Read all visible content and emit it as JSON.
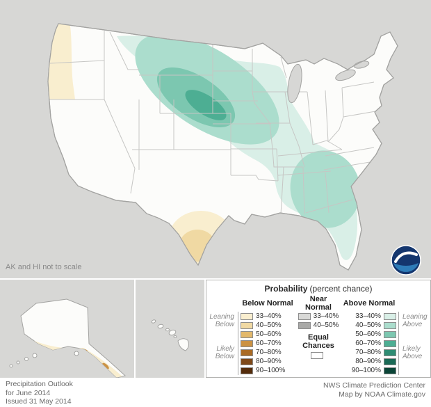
{
  "palette": {
    "page_bg": "#ffffff",
    "map_bg": "#d7d7d5",
    "land": "#fcfcfa",
    "state_line": "#c6c6c4",
    "outline": "#a3a3a1",
    "lake": "#d7d7d5",
    "logo_navy": "#14366e",
    "logo_blue": "#2e7cb8"
  },
  "map": {
    "note": "AK and HI not to scale"
  },
  "legend": {
    "title": "Probability",
    "title_suffix": "(percent chance)",
    "below": {
      "header": "Below Normal",
      "group_labels": {
        "leaning": [
          "Leaning",
          "Below"
        ],
        "likely": [
          "Likely",
          "Below"
        ]
      },
      "rows": [
        {
          "label": "33–40%",
          "color": "#f9eecf"
        },
        {
          "label": "40–50%",
          "color": "#f0d9a3"
        },
        {
          "label": "50–60%",
          "color": "#e2b86b"
        },
        {
          "label": "60–70%",
          "color": "#cb9243"
        },
        {
          "label": "70–80%",
          "color": "#aa6b25"
        },
        {
          "label": "80–90%",
          "color": "#7e4818"
        },
        {
          "label": "90–100%",
          "color": "#542c0b"
        }
      ]
    },
    "near": {
      "header": [
        "Near",
        "Normal"
      ],
      "rows": [
        {
          "label": "33–40%",
          "color": "#d9d9d7"
        },
        {
          "label": "40–50%",
          "color": "#a9a9a7"
        }
      ],
      "equal": [
        "Equal",
        "Chances"
      ],
      "equal_color": "#ffffff"
    },
    "above": {
      "header": "Above Normal",
      "group_labels": {
        "leaning": [
          "Leaning",
          "Above"
        ],
        "likely": [
          "Likely",
          "Above"
        ]
      },
      "rows": [
        {
          "label": "33–40%",
          "color": "#d9efe7"
        },
        {
          "label": "40–50%",
          "color": "#abddcd"
        },
        {
          "label": "50–60%",
          "color": "#7cc7b0"
        },
        {
          "label": "60–70%",
          "color": "#4dae93"
        },
        {
          "label": "70–80%",
          "color": "#2f8d74"
        },
        {
          "label": "80–90%",
          "color": "#1a6a56"
        },
        {
          "label": "90–100%",
          "color": "#0b4537"
        }
      ]
    }
  },
  "footer": {
    "left": [
      "Precipitation Outlook",
      "for June 2014",
      "Issued 31 May 2014"
    ],
    "right": [
      "NWS Climate Prediction Center",
      "Map by NOAA Climate.gov"
    ]
  }
}
